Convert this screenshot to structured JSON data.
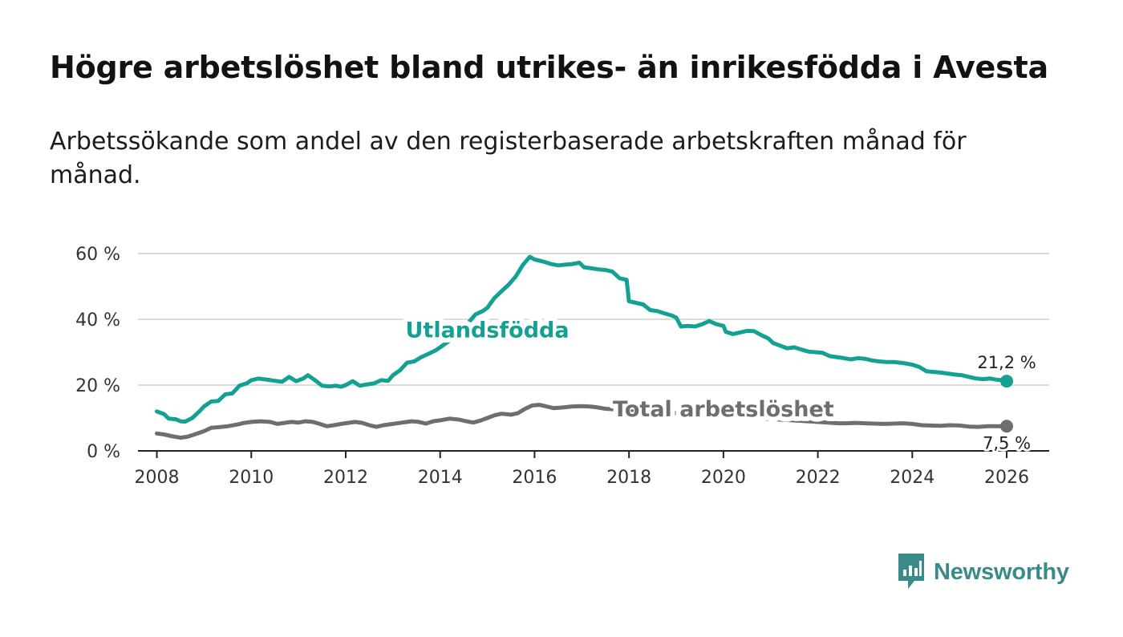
{
  "title": "Högre arbetslöshet bland utrikes- än inrikesfödda i Avesta",
  "subtitle": "Arbetssökande som andel av den registerbaserade arbetskraften månad för månad.",
  "brand": {
    "name": "Newsworthy",
    "color": "#3b8a8a",
    "icon": "bar-chart-speech-bubble-icon"
  },
  "chart_data": {
    "type": "line",
    "title": "Högre arbetslöshet bland utrikes- än inrikesfödda i Avesta",
    "xlabel": "",
    "ylabel": "",
    "xlim": [
      2007.6,
      2026.9
    ],
    "ylim": [
      0,
      60
    ],
    "grid": true,
    "y_ticks": [
      {
        "value": 0,
        "label": "0 %"
      },
      {
        "value": 20,
        "label": "20 %"
      },
      {
        "value": 40,
        "label": "40 %"
      },
      {
        "value": 60,
        "label": "60 %"
      }
    ],
    "x_ticks": [
      {
        "value": 2008,
        "label": "2008"
      },
      {
        "value": 2010,
        "label": "2010"
      },
      {
        "value": 2012,
        "label": "2012"
      },
      {
        "value": 2014,
        "label": "2014"
      },
      {
        "value": 2016,
        "label": "2016"
      },
      {
        "value": 2018,
        "label": "2018"
      },
      {
        "value": 2020,
        "label": "2020"
      },
      {
        "value": 2022,
        "label": "2022"
      },
      {
        "value": 2024,
        "label": "2024"
      },
      {
        "value": 2026,
        "label": "2026"
      }
    ],
    "series": [
      {
        "name": "Utlandsfödda",
        "color": "#14a092",
        "end_label": "21,2 %",
        "points": [
          [
            2008.0,
            12.0
          ],
          [
            2008.15,
            11.2
          ],
          [
            2008.25,
            9.8
          ],
          [
            2008.4,
            9.6
          ],
          [
            2008.5,
            9.0
          ],
          [
            2008.6,
            8.9
          ],
          [
            2008.75,
            10.0
          ],
          [
            2008.9,
            12.0
          ],
          [
            2009.0,
            13.5
          ],
          [
            2009.15,
            15.0
          ],
          [
            2009.3,
            15.2
          ],
          [
            2009.45,
            17.2
          ],
          [
            2009.6,
            17.5
          ],
          [
            2009.75,
            19.8
          ],
          [
            2009.9,
            20.5
          ],
          [
            2010.0,
            21.5
          ],
          [
            2010.15,
            22.0
          ],
          [
            2010.35,
            21.6
          ],
          [
            2010.5,
            21.3
          ],
          [
            2010.65,
            21.0
          ],
          [
            2010.8,
            22.5
          ],
          [
            2010.95,
            21.2
          ],
          [
            2011.1,
            22.0
          ],
          [
            2011.2,
            23.0
          ],
          [
            2011.35,
            21.5
          ],
          [
            2011.5,
            19.8
          ],
          [
            2011.65,
            19.6
          ],
          [
            2011.8,
            19.8
          ],
          [
            2011.9,
            19.5
          ],
          [
            2012.0,
            20.0
          ],
          [
            2012.15,
            21.2
          ],
          [
            2012.3,
            19.8
          ],
          [
            2012.45,
            20.2
          ],
          [
            2012.6,
            20.5
          ],
          [
            2012.75,
            21.5
          ],
          [
            2012.9,
            21.3
          ],
          [
            2013.0,
            23.0
          ],
          [
            2013.15,
            24.5
          ],
          [
            2013.3,
            26.8
          ],
          [
            2013.45,
            27.2
          ],
          [
            2013.6,
            28.5
          ],
          [
            2013.75,
            29.5
          ],
          [
            2013.9,
            30.5
          ],
          [
            2014.0,
            31.5
          ],
          [
            2014.2,
            33.5
          ],
          [
            2014.4,
            36.0
          ],
          [
            2014.6,
            39.0
          ],
          [
            2014.75,
            41.5
          ],
          [
            2014.9,
            42.5
          ],
          [
            2015.0,
            43.5
          ],
          [
            2015.15,
            46.5
          ],
          [
            2015.3,
            48.5
          ],
          [
            2015.45,
            50.5
          ],
          [
            2015.6,
            53.0
          ],
          [
            2015.75,
            56.5
          ],
          [
            2015.9,
            59.0
          ],
          [
            2016.0,
            58.2
          ],
          [
            2016.2,
            57.5
          ],
          [
            2016.35,
            56.8
          ],
          [
            2016.5,
            56.4
          ],
          [
            2016.65,
            56.6
          ],
          [
            2016.8,
            56.8
          ],
          [
            2016.95,
            57.2
          ],
          [
            2017.05,
            55.8
          ],
          [
            2017.2,
            55.5
          ],
          [
            2017.35,
            55.2
          ],
          [
            2017.5,
            55.0
          ],
          [
            2017.65,
            54.5
          ],
          [
            2017.8,
            52.5
          ],
          [
            2017.95,
            52.0
          ],
          [
            2018.0,
            45.5
          ],
          [
            2018.15,
            45.0
          ],
          [
            2018.3,
            44.5
          ],
          [
            2018.45,
            42.8
          ],
          [
            2018.6,
            42.5
          ],
          [
            2018.75,
            41.8
          ],
          [
            2018.9,
            41.2
          ],
          [
            2019.0,
            40.5
          ],
          [
            2019.1,
            37.8
          ],
          [
            2019.25,
            38.0
          ],
          [
            2019.4,
            37.8
          ],
          [
            2019.55,
            38.5
          ],
          [
            2019.7,
            39.5
          ],
          [
            2019.85,
            38.5
          ],
          [
            2020.0,
            38.0
          ],
          [
            2020.05,
            36.2
          ],
          [
            2020.2,
            35.5
          ],
          [
            2020.35,
            36.0
          ],
          [
            2020.5,
            36.5
          ],
          [
            2020.65,
            36.4
          ],
          [
            2020.8,
            35.2
          ],
          [
            2020.95,
            34.2
          ],
          [
            2021.05,
            32.8
          ],
          [
            2021.2,
            32.0
          ],
          [
            2021.35,
            31.2
          ],
          [
            2021.5,
            31.5
          ],
          [
            2021.65,
            30.8
          ],
          [
            2021.8,
            30.2
          ],
          [
            2021.95,
            30.0
          ],
          [
            2022.1,
            29.8
          ],
          [
            2022.25,
            28.8
          ],
          [
            2022.4,
            28.5
          ],
          [
            2022.55,
            28.2
          ],
          [
            2022.7,
            27.8
          ],
          [
            2022.85,
            28.2
          ],
          [
            2023.0,
            28.0
          ],
          [
            2023.15,
            27.5
          ],
          [
            2023.3,
            27.2
          ],
          [
            2023.45,
            27.0
          ],
          [
            2023.6,
            27.0
          ],
          [
            2023.75,
            26.8
          ],
          [
            2023.9,
            26.5
          ],
          [
            2024.0,
            26.2
          ],
          [
            2024.15,
            25.5
          ],
          [
            2024.3,
            24.2
          ],
          [
            2024.45,
            24.0
          ],
          [
            2024.6,
            23.8
          ],
          [
            2024.75,
            23.5
          ],
          [
            2024.9,
            23.2
          ],
          [
            2025.05,
            23.0
          ],
          [
            2025.2,
            22.5
          ],
          [
            2025.35,
            22.0
          ],
          [
            2025.5,
            21.8
          ],
          [
            2025.65,
            22.0
          ],
          [
            2025.8,
            21.6
          ],
          [
            2025.9,
            21.5
          ],
          [
            2026.0,
            21.2
          ]
        ]
      },
      {
        "name": "Total arbetslöshet",
        "color": "#6d6d72",
        "end_label": "7,5 %",
        "points": [
          [
            2008.0,
            5.3
          ],
          [
            2008.15,
            5.0
          ],
          [
            2008.3,
            4.5
          ],
          [
            2008.5,
            4.0
          ],
          [
            2008.65,
            4.3
          ],
          [
            2008.8,
            5.0
          ],
          [
            2009.0,
            6.0
          ],
          [
            2009.15,
            7.0
          ],
          [
            2009.3,
            7.2
          ],
          [
            2009.5,
            7.5
          ],
          [
            2009.7,
            8.0
          ],
          [
            2009.85,
            8.5
          ],
          [
            2010.0,
            8.8
          ],
          [
            2010.2,
            9.0
          ],
          [
            2010.4,
            8.8
          ],
          [
            2010.55,
            8.2
          ],
          [
            2010.7,
            8.5
          ],
          [
            2010.85,
            8.8
          ],
          [
            2011.0,
            8.6
          ],
          [
            2011.15,
            9.0
          ],
          [
            2011.3,
            8.8
          ],
          [
            2011.45,
            8.2
          ],
          [
            2011.6,
            7.5
          ],
          [
            2011.75,
            7.8
          ],
          [
            2011.9,
            8.2
          ],
          [
            2012.05,
            8.5
          ],
          [
            2012.2,
            8.8
          ],
          [
            2012.35,
            8.5
          ],
          [
            2012.5,
            7.8
          ],
          [
            2012.65,
            7.3
          ],
          [
            2012.8,
            7.8
          ],
          [
            2013.0,
            8.2
          ],
          [
            2013.2,
            8.6
          ],
          [
            2013.4,
            9.0
          ],
          [
            2013.55,
            8.8
          ],
          [
            2013.7,
            8.3
          ],
          [
            2013.85,
            9.0
          ],
          [
            2014.0,
            9.3
          ],
          [
            2014.2,
            9.8
          ],
          [
            2014.4,
            9.5
          ],
          [
            2014.55,
            9.0
          ],
          [
            2014.7,
            8.6
          ],
          [
            2014.85,
            9.2
          ],
          [
            2015.0,
            10.0
          ],
          [
            2015.15,
            10.8
          ],
          [
            2015.3,
            11.3
          ],
          [
            2015.5,
            11.0
          ],
          [
            2015.65,
            11.5
          ],
          [
            2015.8,
            12.8
          ],
          [
            2015.95,
            13.8
          ],
          [
            2016.1,
            14.0
          ],
          [
            2016.25,
            13.5
          ],
          [
            2016.4,
            13.0
          ],
          [
            2016.6,
            13.2
          ],
          [
            2016.8,
            13.5
          ],
          [
            2017.0,
            13.6
          ],
          [
            2017.15,
            13.5
          ],
          [
            2017.3,
            13.3
          ],
          [
            2017.5,
            12.8
          ],
          [
            2022.45,
            8.4
          ],
          [
            2022.6,
            8.4
          ],
          [
            2022.8,
            8.5
          ],
          [
            2023.0,
            8.4
          ],
          [
            2023.2,
            8.3
          ],
          [
            2023.4,
            8.2
          ],
          [
            2023.6,
            8.3
          ],
          [
            2023.8,
            8.4
          ],
          [
            2024.0,
            8.2
          ],
          [
            2024.2,
            7.8
          ],
          [
            2024.4,
            7.7
          ],
          [
            2024.6,
            7.6
          ],
          [
            2024.8,
            7.8
          ],
          [
            2025.0,
            7.7
          ],
          [
            2025.2,
            7.4
          ],
          [
            2025.4,
            7.3
          ],
          [
            2025.6,
            7.5
          ],
          [
            2025.8,
            7.5
          ],
          [
            2026.0,
            7.5
          ]
        ]
      }
    ],
    "annotations": [
      {
        "text": "Utlandsfödda",
        "series": "Utlandsfödda",
        "x": 2015.0,
        "y": 34.5,
        "anchor": "middle",
        "color": "#14a092"
      },
      {
        "text": "Total arbetslöshet",
        "series": "Total arbetslöshet",
        "x": 2020.0,
        "y": 10.5,
        "anchor": "middle",
        "color": "#6d6d72"
      }
    ]
  }
}
